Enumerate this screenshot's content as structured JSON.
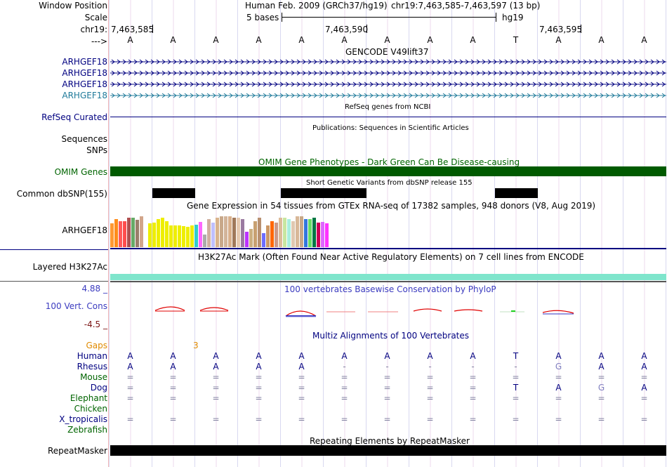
{
  "header": {
    "window_position_label": "Window Position",
    "scale_label": "Scale",
    "chrom_label": "chr19:",
    "arrow_label": "--->",
    "assembly_title": "Human Feb. 2009 (GRCh37/hg19)",
    "position_text": "chr19:7,463,585-7,463,597 (13 bp)",
    "scale_text": "5 bases",
    "db_text": "hg19",
    "ruler_ticks": [
      "7,463,585",
      "7,463,590",
      "7,463,595"
    ],
    "bases": [
      "A",
      "A",
      "A",
      "A",
      "A",
      "A",
      "A",
      "A",
      "A",
      "T",
      "A",
      "A",
      "A"
    ]
  },
  "gencode": {
    "title": "GENCODE V49lift37",
    "transcripts": [
      "ARHGEF18",
      "ARHGEF18",
      "ARHGEF18",
      "ARHGEF18"
    ]
  },
  "refseq": {
    "label": "RefSeq Curated",
    "title": "RefSeq genes from NCBI"
  },
  "publications": {
    "title": "Publications: Sequences in Scientific Articles",
    "labels": [
      "Sequences",
      "SNPs"
    ]
  },
  "omim": {
    "label": "OMIM Genes",
    "title": "OMIM Gene Phenotypes - Dark Green Can Be Disease-causing",
    "color": "#005a00"
  },
  "dbsnp": {
    "label": "Common dbSNP(155)",
    "title": "Short Genetic Variants from dbSNP release 155"
  },
  "gtex": {
    "label": "ARHGEF18",
    "title": "Gene Expression in 54 tissues from GTEx RNA-seq of 17382 samples, 948 donors (V8, Aug 2019)",
    "bars": [
      {
        "color": "#ff9933",
        "level": 0.78
      },
      {
        "color": "#ff8c1a",
        "level": 0.9
      },
      {
        "color": "#ff5a5a",
        "level": 0.85
      },
      {
        "color": "#ff4d4d",
        "level": 0.85
      },
      {
        "color": "#b05050",
        "level": 0.95
      },
      {
        "color": "#66aa66",
        "level": 0.95
      },
      {
        "color": "#9b7e6a",
        "level": 0.88
      },
      {
        "color": "#d2a58a",
        "level": 1.0
      },
      {
        "color": "#ffffff",
        "level": 0.0
      },
      {
        "color": "#eeee00",
        "level": 0.77
      },
      {
        "color": "#eeee00",
        "level": 0.8
      },
      {
        "color": "#eeee00",
        "level": 0.9
      },
      {
        "color": "#eeee00",
        "level": 0.95
      },
      {
        "color": "#eeee00",
        "level": 0.85
      },
      {
        "color": "#eeee00",
        "level": 0.7
      },
      {
        "color": "#eeee00",
        "level": 0.7
      },
      {
        "color": "#eeee00",
        "level": 0.7
      },
      {
        "color": "#eeee00",
        "level": 0.68
      },
      {
        "color": "#eeee00",
        "level": 0.65
      },
      {
        "color": "#eeee00",
        "level": 0.7
      },
      {
        "color": "#33cccc",
        "level": 0.72
      },
      {
        "color": "#ff66ff",
        "level": 0.82
      },
      {
        "color": "#aaaaaa",
        "level": 0.4
      },
      {
        "color": "#d0b0a0",
        "level": 0.9
      },
      {
        "color": "#bfbfff",
        "level": 0.8
      },
      {
        "color": "#d9b38c",
        "level": 0.95
      },
      {
        "color": "#c8a88a",
        "level": 1.0
      },
      {
        "color": "#d2b49a",
        "level": 1.0
      },
      {
        "color": "#d9b08c",
        "level": 1.0
      },
      {
        "color": "#a0785a",
        "level": 0.95
      },
      {
        "color": "#e6c9b0",
        "level": 0.95
      },
      {
        "color": "#9a7aa0",
        "level": 0.9
      },
      {
        "color": "#bb33ff",
        "level": 0.5
      },
      {
        "color": "#ccb080",
        "level": 0.6
      },
      {
        "color": "#c8a070",
        "level": 0.85
      },
      {
        "color": "#b89070",
        "level": 0.95
      },
      {
        "color": "#6c6cff",
        "level": 0.45
      },
      {
        "color": "#cc9966",
        "level": 0.7
      },
      {
        "color": "#ff6600",
        "level": 0.85
      },
      {
        "color": "#cc9988",
        "level": 0.8
      },
      {
        "color": "#ddbb99",
        "level": 0.95
      },
      {
        "color": "#c8e6a0",
        "level": 0.95
      },
      {
        "color": "#aaeedd",
        "level": 0.9
      },
      {
        "color": "#e0c8b0",
        "level": 0.85
      },
      {
        "color": "#d8b898",
        "level": 1.0
      },
      {
        "color": "#c8a888",
        "level": 1.0
      },
      {
        "color": "#3377dd",
        "level": 0.92
      },
      {
        "color": "#66dd66",
        "level": 0.92
      },
      {
        "color": "#007744",
        "level": 0.95
      },
      {
        "color": "#cc0055",
        "level": 0.8
      },
      {
        "color": "#dd66ff",
        "level": 0.82
      },
      {
        "color": "#ff33ff",
        "level": 0.78
      }
    ]
  },
  "h3k27ac": {
    "label": "Layered H3K27Ac",
    "title": "H3K27Ac Mark (Often Found Near Active Regulatory Elements) on 7 cell lines from ENCODE",
    "color": "#7fe5cc"
  },
  "conservation": {
    "label": "100 Vert. Cons",
    "max": "4.88 _",
    "min": "-4.5 _",
    "title": "100 vertebrates Basewise Conservation by PhyloP"
  },
  "multiz": {
    "title": "Multiz Alignments of 100 Vertebrates",
    "gaps_label": "Gaps",
    "gaps_value": "3",
    "species": [
      {
        "name": "Human",
        "cls": "navy",
        "row": [
          "A",
          "A",
          "A",
          "A",
          "A",
          "A",
          "A",
          "A",
          "A",
          "T",
          "A",
          "A",
          "A"
        ]
      },
      {
        "name": "Rhesus",
        "cls": "navy",
        "row": [
          "A",
          "A",
          "A",
          "A",
          "A",
          "-",
          "-",
          "-",
          "-",
          "-",
          "G",
          "A",
          "A"
        ]
      },
      {
        "name": "Mouse",
        "cls": "green",
        "row": [
          "=",
          "=",
          "=",
          "=",
          "=",
          "=",
          "=",
          "=",
          "=",
          "=",
          "=",
          "=",
          "="
        ]
      },
      {
        "name": "Dog",
        "cls": "navy",
        "row": [
          "=",
          "=",
          "=",
          "=",
          "=",
          "=",
          "=",
          "=",
          "=",
          "T",
          "A",
          "G",
          "A"
        ]
      },
      {
        "name": "Elephant",
        "cls": "green",
        "row": [
          "=",
          "=",
          "=",
          "=",
          "=",
          "=",
          "=",
          "=",
          "=",
          "=",
          "=",
          "=",
          "="
        ]
      },
      {
        "name": "Chicken",
        "cls": "green",
        "row": [
          "",
          "",
          "",
          "",
          "",
          "",
          "",
          "",
          "",
          "",
          "",
          "",
          ""
        ]
      },
      {
        "name": "X_tropicalis",
        "cls": "navy",
        "row": [
          "=",
          "=",
          "=",
          "=",
          "=",
          "=",
          "=",
          "=",
          "=",
          "=",
          "=",
          "=",
          "="
        ]
      },
      {
        "name": "Zebrafish",
        "cls": "green",
        "row": [
          "",
          "",
          "",
          "",
          "",
          "",
          "",
          "",
          "",
          "",
          "",
          "",
          ""
        ]
      }
    ]
  },
  "repeatmasker": {
    "label": "RepeatMasker",
    "title": "Repeating Elements by RepeatMasker"
  }
}
